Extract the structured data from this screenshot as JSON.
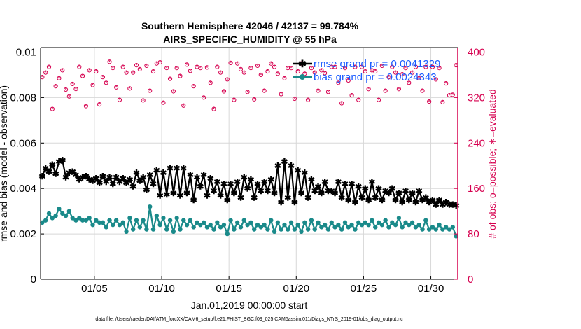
{
  "chart_data": {
    "type": "line",
    "title_line1": "Southern Hemisphere 42046 / 42137 = 99.784%",
    "title_line2": "AIRS_SPECIFIC_HUMIDITY @ 55 hPa",
    "xlabel": "Jan.01,2019 00:00:00 start",
    "ylabel_left": "rmse and bias (model - observation)",
    "ylabel_right": "# of obs: o=possible; ∗=evaluated",
    "footnote": "data file: /Users/raeder/DAI/ATM_forcXX/CAM6_setup/f.e21.FHIST_BGC.f09_025.CAM6assim.011/Diags_NTrS_2019-01/obs_diag_output.nc",
    "x_ticks": [
      "01/05",
      "01/10",
      "01/15",
      "01/20",
      "01/25",
      "01/30"
    ],
    "x_tick_days": [
      5,
      10,
      15,
      20,
      25,
      30
    ],
    "xlim": [
      1,
      32
    ],
    "ylim_left": [
      0,
      0.0102
    ],
    "ylim_right": [
      0,
      408
    ],
    "y_ticks_left": [
      "0",
      "0.002",
      "0.004",
      "0.006",
      "0.008",
      "0.01"
    ],
    "y_tick_values_left": [
      0,
      0.002,
      0.004,
      0.006,
      0.008,
      0.01
    ],
    "y_ticks_right": [
      "0",
      "80",
      "160",
      "240",
      "320",
      "400"
    ],
    "y_tick_values_right": [
      0,
      80,
      160,
      240,
      320,
      400
    ],
    "legend": [
      {
        "label": "rmse grand pr = 0.0041329",
        "color": "#000000"
      },
      {
        "label": "bias grand pr = 0.0024343",
        "color": "#1a8a8a"
      }
    ],
    "colors": {
      "rmse": "#000000",
      "bias": "#1a8a8a",
      "obs": "#d6004f",
      "right_axis": "#d6004f",
      "grid": "#d8d8d8"
    },
    "n_points": 124,
    "rmse_values": [
      0.00455,
      0.0049,
      0.00475,
      0.00505,
      0.00465,
      0.0052,
      0.00525,
      0.0045,
      0.0047,
      0.00475,
      0.0046,
      0.0044,
      0.0045,
      0.00455,
      0.0044,
      0.00435,
      0.00445,
      0.00425,
      0.00455,
      0.0043,
      0.0045,
      0.0042,
      0.0045,
      0.0043,
      0.00445,
      0.00425,
      0.0044,
      0.0041,
      0.0047,
      0.00435,
      0.0045,
      0.00395,
      0.0046,
      0.0042,
      0.0048,
      0.0037,
      0.0047,
      0.00375,
      0.0049,
      0.0038,
      0.0049,
      0.0037,
      0.0049,
      0.0038,
      0.0046,
      0.0035,
      0.0045,
      0.0041,
      0.0046,
      0.0037,
      0.00445,
      0.0039,
      0.0043,
      0.0037,
      0.0042,
      0.0035,
      0.0042,
      0.0038,
      0.0043,
      0.0036,
      0.0045,
      0.004,
      0.0044,
      0.0036,
      0.0042,
      0.0039,
      0.0043,
      0.0039,
      0.0044,
      0.0038,
      0.005,
      0.0034,
      0.0052,
      0.0036,
      0.005,
      0.0034,
      0.0048,
      0.0038,
      0.0047,
      0.0036,
      0.0044,
      0.0039,
      0.0041,
      0.0038,
      0.0043,
      0.0039,
      0.0039,
      0.0038,
      0.0043,
      0.0036,
      0.0042,
      0.0035,
      0.0042,
      0.0034,
      0.0041,
      0.0036,
      0.004,
      0.0035,
      0.0043,
      0.0036,
      0.004,
      0.0035,
      0.0039,
      0.0038,
      0.004,
      0.0035,
      0.0038,
      0.0034,
      0.0039,
      0.0035,
      0.0038,
      0.0034,
      0.0039,
      0.0035,
      0.0036,
      0.0034,
      0.0035,
      0.0033,
      0.0035,
      0.0033,
      0.0034,
      0.0033,
      0.0033,
      0.00325
    ],
    "bias_values": [
      0.0025,
      0.0026,
      0.0029,
      0.0027,
      0.0028,
      0.0031,
      0.0029,
      0.0028,
      0.003,
      0.0027,
      0.0026,
      0.0027,
      0.0026,
      0.0026,
      0.0027,
      0.0024,
      0.0026,
      0.0025,
      0.0025,
      0.0023,
      0.0026,
      0.0024,
      0.0026,
      0.0024,
      0.0025,
      0.0021,
      0.0027,
      0.0022,
      0.0026,
      0.0023,
      0.0026,
      0.0022,
      0.0032,
      0.0022,
      0.0028,
      0.0024,
      0.0027,
      0.0022,
      0.0026,
      0.0021,
      0.0027,
      0.0022,
      0.0026,
      0.0024,
      0.0026,
      0.0023,
      0.0025,
      0.0024,
      0.0025,
      0.0023,
      0.0024,
      0.0022,
      0.0025,
      0.0023,
      0.0024,
      0.002,
      0.0026,
      0.0022,
      0.0025,
      0.0023,
      0.0026,
      0.0024,
      0.0025,
      0.0022,
      0.0024,
      0.0023,
      0.0024,
      0.0022,
      0.0026,
      0.0021,
      0.0025,
      0.0022,
      0.0024,
      0.0022,
      0.0025,
      0.0022,
      0.0024,
      0.0021,
      0.0025,
      0.0022,
      0.0026,
      0.0022,
      0.0025,
      0.0023,
      0.0024,
      0.0022,
      0.0025,
      0.0023,
      0.0024,
      0.0022,
      0.0025,
      0.0023,
      0.0024,
      0.0022,
      0.0025,
      0.0024,
      0.0025,
      0.0024,
      0.0026,
      0.0023,
      0.0025,
      0.0024,
      0.0026,
      0.0023,
      0.0025,
      0.0024,
      0.0027,
      0.0023,
      0.0025,
      0.0024,
      0.0025,
      0.0023,
      0.0024,
      0.0022,
      0.0026,
      0.0022,
      0.0023,
      0.0022,
      0.0024,
      0.0022,
      0.0023,
      0.0022,
      0.0023,
      0.0019
    ],
    "obs_possible": [
      356,
      364,
      374,
      300,
      340,
      354,
      368,
      334,
      322,
      344,
      335,
      374,
      358,
      305,
      368,
      342,
      366,
      308,
      356,
      346,
      383,
      372,
      338,
      316,
      374,
      364,
      336,
      364,
      377,
      370,
      315,
      376,
      332,
      366,
      380,
      382,
      311,
      372,
      353,
      331,
      372,
      358,
      306,
      378,
      367,
      340,
      374,
      372,
      320,
      373,
      346,
      300,
      374,
      364,
      331,
      352,
      381,
      316,
      380,
      370,
      364,
      330,
      372,
      317,
      376,
      360,
      332,
      366,
      380,
      374,
      362,
      326,
      354,
      372,
      372,
      318,
      366,
      380,
      362,
      316,
      372,
      364,
      332,
      368,
      363,
      330,
      374,
      374,
      346,
      310,
      372,
      350,
      324,
      374,
      316,
      374,
      366,
      335,
      368,
      366,
      316,
      376,
      332,
      356,
      374,
      364,
      335,
      361,
      372,
      346,
      364,
      374,
      354,
      332,
      374,
      313,
      374,
      352,
      372,
      312,
      345,
      324,
      325,
      377
    ]
  }
}
